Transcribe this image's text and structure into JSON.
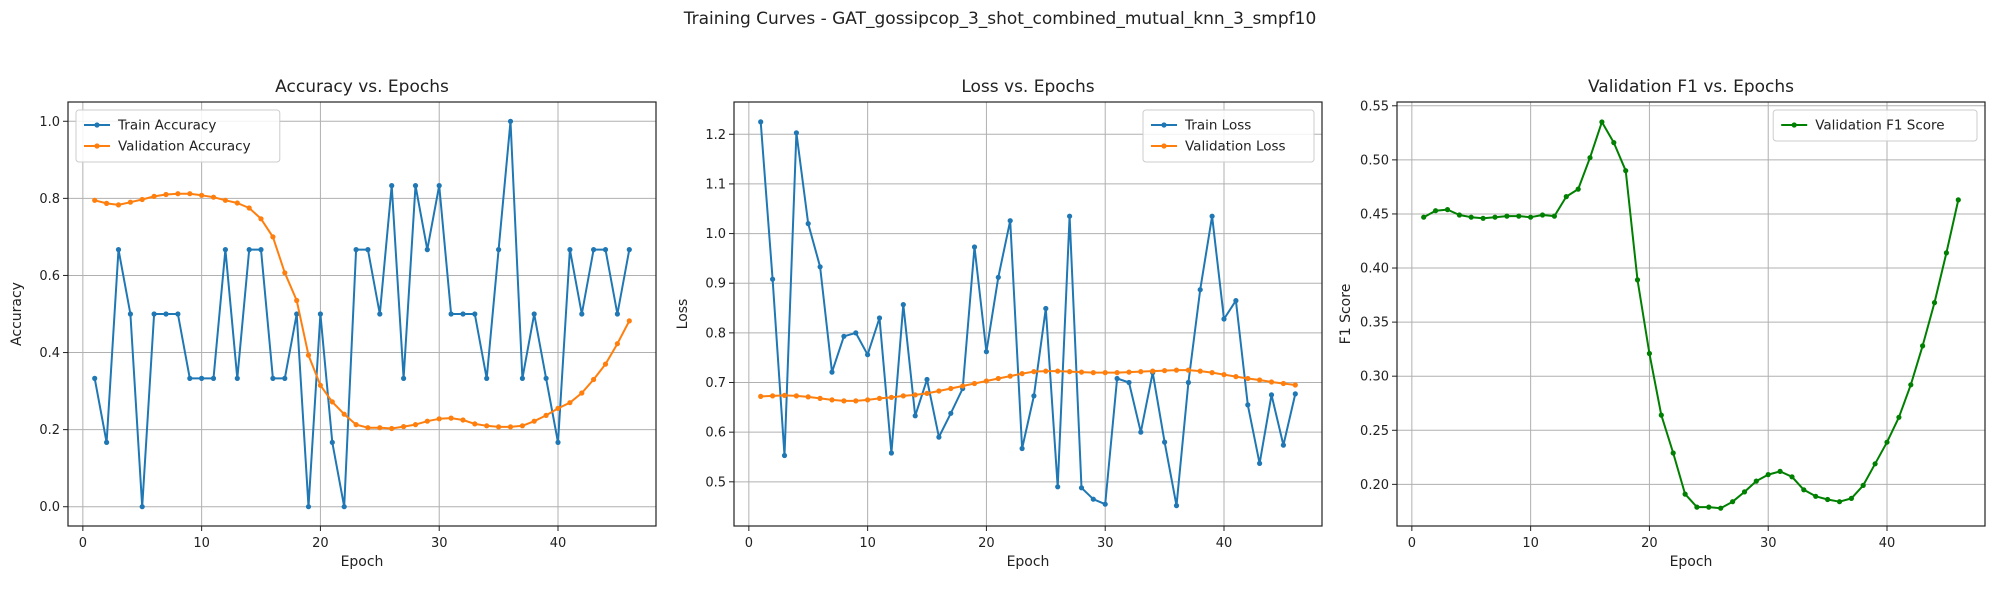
{
  "suptitle": "Training Curves - GAT_gossipcop_3_shot_combined_mutual_knn_3_smpf10",
  "chart_data": [
    {
      "type": "line",
      "title": "Accuracy vs. Epochs",
      "xlabel": "Epoch",
      "ylabel": "Accuracy",
      "xlim": [
        -1.25,
        48.25
      ],
      "ylim": [
        -0.05,
        1.05
      ],
      "xticks": [
        0,
        10,
        20,
        30,
        40
      ],
      "yticks": [
        0.0,
        0.2,
        0.4,
        0.6,
        0.8,
        1.0
      ],
      "ytick_labels": [
        "0.0",
        "0.2",
        "0.4",
        "0.6",
        "0.8",
        "1.0"
      ],
      "grid": true,
      "legend": "upper-left",
      "series": [
        {
          "name": "Train Accuracy",
          "color": "#1f77b4",
          "y": [
            0.333,
            0.167,
            0.667,
            0.5,
            0.0,
            0.5,
            0.5,
            0.5,
            0.333,
            0.333,
            0.333,
            0.667,
            0.333,
            0.667,
            0.667,
            0.333,
            0.333,
            0.5,
            0.0,
            0.5,
            0.167,
            0.0,
            0.667,
            0.667,
            0.5,
            0.833,
            0.333,
            0.833,
            0.667,
            0.833,
            0.5,
            0.5,
            0.5,
            0.333,
            0.667,
            1.0,
            0.333,
            0.5,
            0.333,
            0.167,
            0.667,
            0.5,
            0.667,
            0.667,
            0.5,
            0.667
          ]
        },
        {
          "name": "Validation Accuracy",
          "color": "#ff7f0e",
          "y": [
            0.795,
            0.787,
            0.783,
            0.79,
            0.797,
            0.805,
            0.81,
            0.812,
            0.812,
            0.808,
            0.803,
            0.795,
            0.788,
            0.775,
            0.747,
            0.7,
            0.607,
            0.535,
            0.393,
            0.315,
            0.272,
            0.24,
            0.213,
            0.205,
            0.205,
            0.203,
            0.208,
            0.213,
            0.222,
            0.228,
            0.23,
            0.225,
            0.215,
            0.21,
            0.207,
            0.207,
            0.21,
            0.222,
            0.237,
            0.255,
            0.27,
            0.295,
            0.33,
            0.37,
            0.423,
            0.482
          ]
        }
      ]
    },
    {
      "type": "line",
      "title": "Loss vs. Epochs",
      "xlabel": "Epoch",
      "ylabel": "Loss",
      "xlim": [
        -1.25,
        48.25
      ],
      "ylim": [
        0.411,
        1.265
      ],
      "xticks": [
        0,
        10,
        20,
        30,
        40
      ],
      "yticks": [
        0.5,
        0.6,
        0.7,
        0.8,
        0.9,
        1.0,
        1.1,
        1.2
      ],
      "ytick_labels": [
        "0.5",
        "0.6",
        "0.7",
        "0.8",
        "0.9",
        "1.0",
        "1.1",
        "1.2"
      ],
      "grid": true,
      "legend": "upper-right",
      "series": [
        {
          "name": "Train Loss",
          "color": "#1f77b4",
          "y": [
            1.225,
            0.908,
            0.553,
            1.203,
            1.02,
            0.933,
            0.721,
            0.793,
            0.8,
            0.756,
            0.83,
            0.558,
            0.857,
            0.633,
            0.706,
            0.59,
            0.638,
            0.688,
            0.973,
            0.762,
            0.912,
            1.026,
            0.567,
            0.673,
            0.849,
            0.49,
            1.035,
            0.488,
            0.465,
            0.455,
            0.708,
            0.7,
            0.6,
            0.72,
            0.58,
            0.452,
            0.7,
            0.887,
            1.035,
            0.828,
            0.865,
            0.655,
            0.537,
            0.675,
            0.574,
            0.677
          ]
        },
        {
          "name": "Validation Loss",
          "color": "#ff7f0e",
          "y": [
            0.672,
            0.673,
            0.674,
            0.673,
            0.671,
            0.668,
            0.665,
            0.663,
            0.663,
            0.665,
            0.668,
            0.67,
            0.673,
            0.675,
            0.678,
            0.683,
            0.688,
            0.693,
            0.698,
            0.703,
            0.708,
            0.713,
            0.718,
            0.722,
            0.723,
            0.723,
            0.722,
            0.721,
            0.72,
            0.72,
            0.72,
            0.721,
            0.722,
            0.723,
            0.724,
            0.725,
            0.725,
            0.723,
            0.72,
            0.716,
            0.712,
            0.708,
            0.705,
            0.701,
            0.698,
            0.695
          ]
        }
      ]
    },
    {
      "type": "line",
      "title": "Validation F1 vs. Epochs",
      "xlabel": "Epoch",
      "ylabel": "F1 Score",
      "xlim": [
        -1.25,
        48.25
      ],
      "ylim": [
        0.1615,
        0.5535
      ],
      "xticks": [
        0,
        10,
        20,
        30,
        40
      ],
      "yticks": [
        0.2,
        0.25,
        0.3,
        0.35,
        0.4,
        0.45,
        0.5,
        0.55
      ],
      "ytick_labels": [
        "0.20",
        "0.25",
        "0.30",
        "0.35",
        "0.40",
        "0.45",
        "0.50",
        "0.55"
      ],
      "grid": true,
      "legend": "upper-right",
      "series": [
        {
          "name": "Validation F1 Score",
          "color": "#008000",
          "y": [
            0.447,
            0.453,
            0.454,
            0.449,
            0.447,
            0.446,
            0.447,
            0.448,
            0.448,
            0.447,
            0.449,
            0.448,
            0.466,
            0.473,
            0.502,
            0.535,
            0.516,
            0.49,
            0.389,
            0.321,
            0.264,
            0.229,
            0.191,
            0.179,
            0.179,
            0.178,
            0.184,
            0.193,
            0.203,
            0.209,
            0.212,
            0.207,
            0.195,
            0.189,
            0.186,
            0.184,
            0.187,
            0.199,
            0.219,
            0.239,
            0.262,
            0.292,
            0.328,
            0.368,
            0.414,
            0.463
          ]
        }
      ]
    }
  ]
}
